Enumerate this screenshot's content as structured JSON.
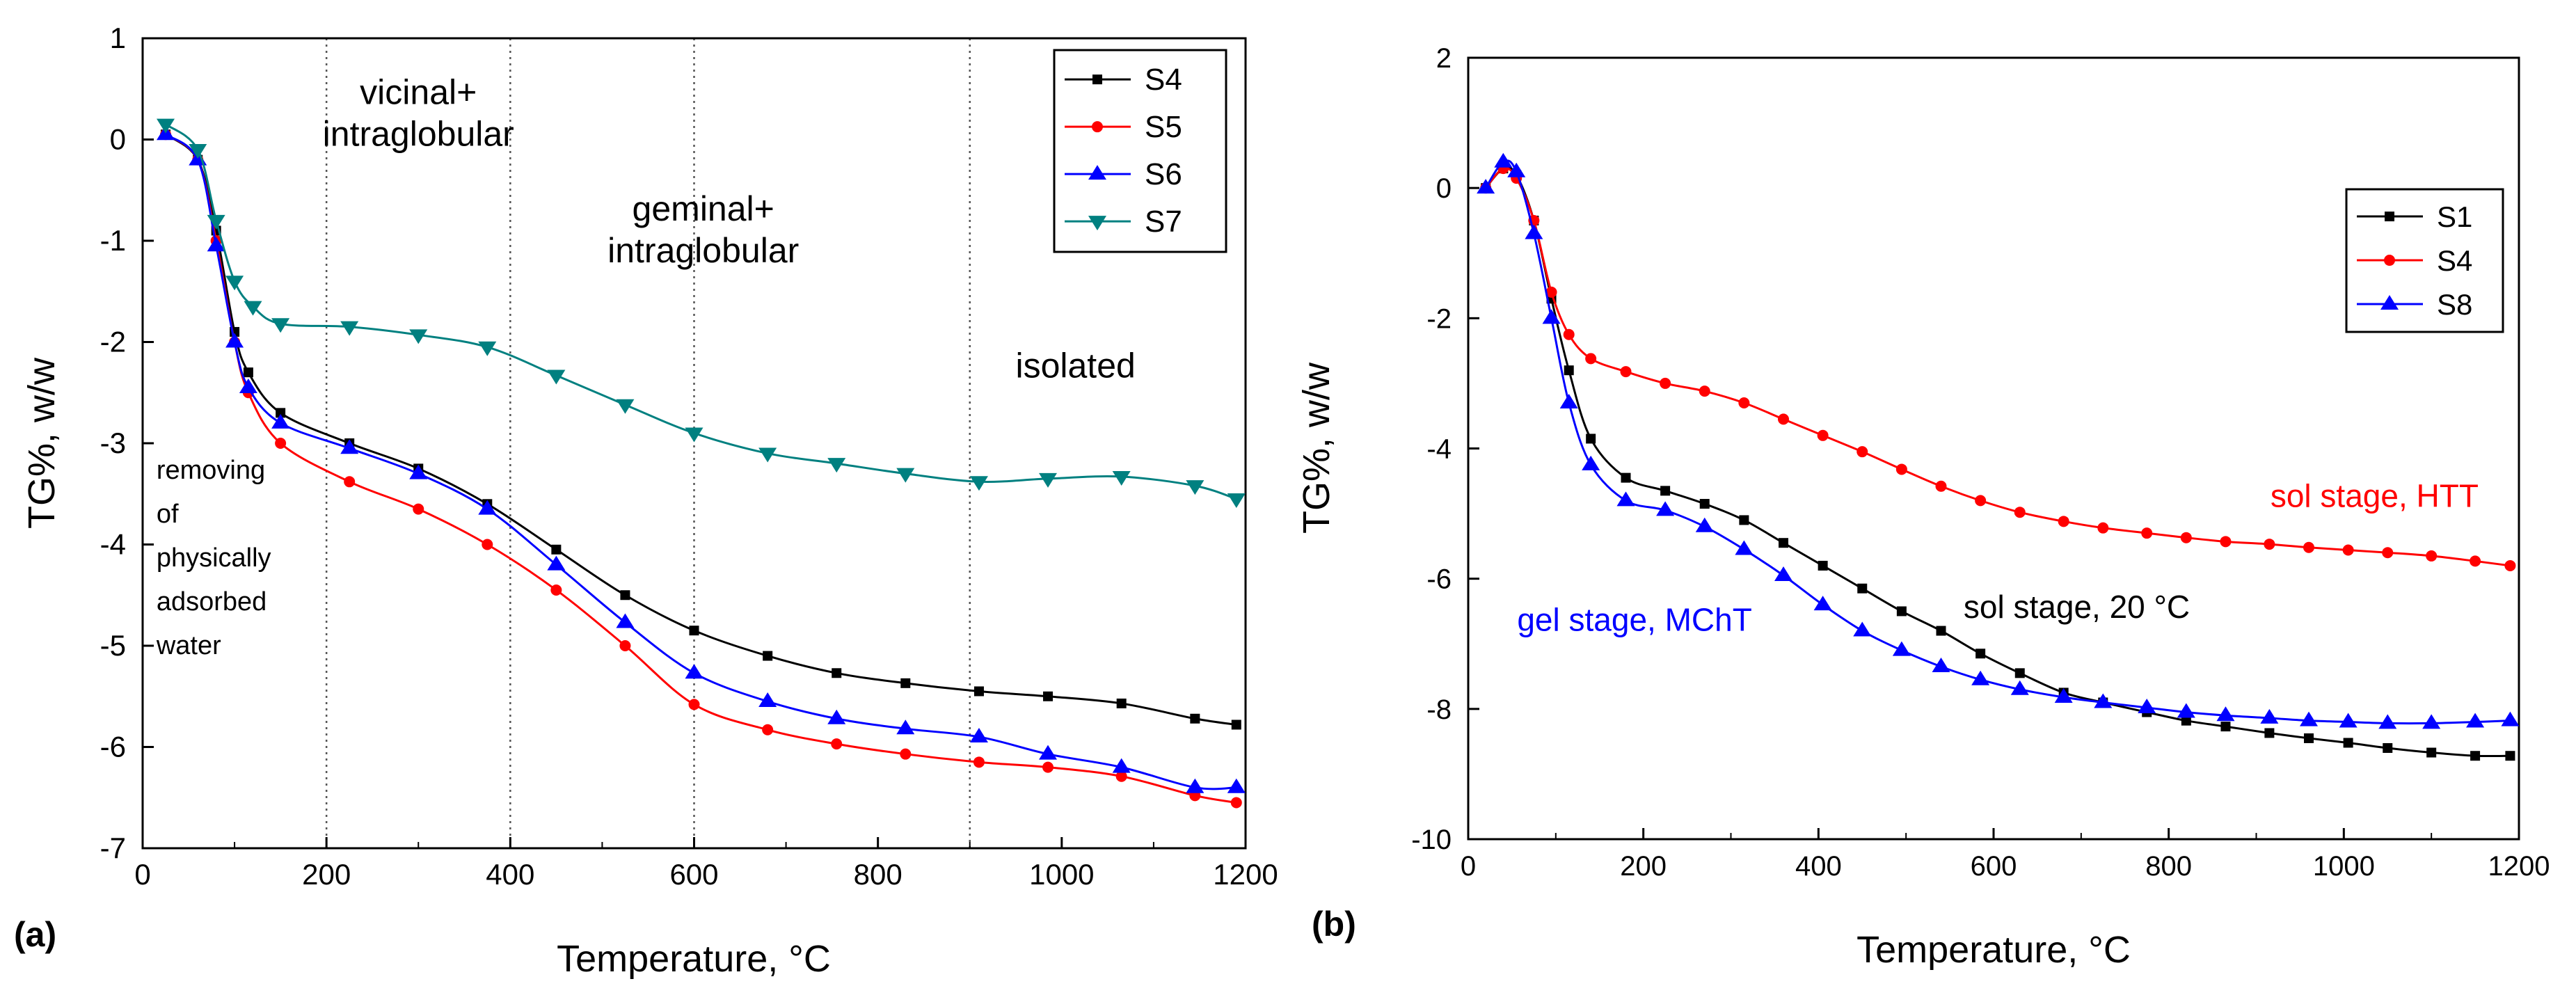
{
  "chart_data": [
    {
      "panel_label": "(a)",
      "type": "line",
      "xlabel": "Temperature, °C",
      "ylabel": "TG%, w/w",
      "xlim": [
        0,
        1200
      ],
      "ylim": [
        -7,
        1
      ],
      "xticks": [
        "0",
        "200",
        "400",
        "600",
        "800",
        "1000",
        "1200"
      ],
      "yticks": [
        "1",
        "0",
        "-1",
        "-2",
        "-3",
        "-4",
        "-5",
        "-6",
        "-7"
      ],
      "legend_position": "top-right",
      "vlines": [
        200,
        400,
        600,
        900,
        1200
      ],
      "annotations": [
        {
          "lines": [
            "vicinal+",
            "intraglobular"
          ],
          "x": 300,
          "y": 0.35
        },
        {
          "lines": [
            "geminal+",
            "intraglobular"
          ],
          "x": 610,
          "y": -0.8
        },
        {
          "lines": [
            "isolated"
          ],
          "x": 1015,
          "y": -2.35
        },
        {
          "lines": [
            "removing",
            "of",
            "physically",
            "adsorbed",
            "water"
          ],
          "x": 15,
          "y": -3.35
        }
      ],
      "series": [
        {
          "name": "S4",
          "color": "#000000",
          "marker": "square",
          "x": [
            25,
            60,
            80,
            100,
            115,
            150,
            225,
            300,
            375,
            450,
            525,
            600,
            680,
            755,
            830,
            910,
            985,
            1065,
            1145,
            1190
          ],
          "y": [
            0.05,
            -0.2,
            -0.9,
            -1.9,
            -2.3,
            -2.7,
            -3.0,
            -3.25,
            -3.6,
            -4.05,
            -4.5,
            -4.85,
            -5.1,
            -5.27,
            -5.37,
            -5.45,
            -5.5,
            -5.57,
            -5.72,
            -5.78
          ]
        },
        {
          "name": "S5",
          "color": "#ff0000",
          "marker": "circle",
          "x": [
            25,
            60,
            80,
            100,
            115,
            150,
            225,
            300,
            375,
            450,
            525,
            600,
            680,
            755,
            830,
            910,
            985,
            1065,
            1145,
            1190
          ],
          "y": [
            0.05,
            -0.2,
            -1.0,
            -2.0,
            -2.5,
            -3.0,
            -3.38,
            -3.65,
            -4.0,
            -4.45,
            -5.0,
            -5.58,
            -5.83,
            -5.97,
            -6.07,
            -6.15,
            -6.2,
            -6.29,
            -6.48,
            -6.55
          ]
        },
        {
          "name": "S6",
          "color": "#0000ff",
          "marker": "triangle-up",
          "x": [
            25,
            60,
            80,
            100,
            115,
            150,
            225,
            300,
            375,
            450,
            525,
            600,
            680,
            755,
            830,
            910,
            985,
            1065,
            1145,
            1190
          ],
          "y": [
            0.05,
            -0.2,
            -1.05,
            -2.0,
            -2.45,
            -2.8,
            -3.05,
            -3.3,
            -3.65,
            -4.2,
            -4.77,
            -5.27,
            -5.55,
            -5.72,
            -5.82,
            -5.9,
            -6.07,
            -6.2,
            -6.4,
            -6.4
          ]
        },
        {
          "name": "S7",
          "color": "#008080",
          "marker": "triangle-down",
          "x": [
            25,
            60,
            80,
            100,
            120,
            150,
            225,
            300,
            375,
            450,
            525,
            600,
            680,
            755,
            830,
            910,
            985,
            1065,
            1145,
            1190
          ],
          "y": [
            0.15,
            -0.1,
            -0.8,
            -1.4,
            -1.65,
            -1.82,
            -1.85,
            -1.93,
            -2.05,
            -2.33,
            -2.62,
            -2.9,
            -3.1,
            -3.2,
            -3.3,
            -3.38,
            -3.35,
            -3.33,
            -3.42,
            -3.55
          ]
        }
      ]
    },
    {
      "panel_label": "(b)",
      "type": "line",
      "xlabel": "Temperature, °C",
      "ylabel": "TG%, w/w",
      "xlim": [
        0,
        1200
      ],
      "ylim": [
        -10,
        2
      ],
      "xticks": [
        "0",
        "200",
        "400",
        "600",
        "800",
        "1000",
        "1200"
      ],
      "yticks": [
        "2",
        "0",
        "-2",
        "-4",
        "-6",
        "-8",
        "-10"
      ],
      "legend_position": "top-right",
      "annotations": [
        {
          "text": "sol stage, HTT",
          "color": "#ff0000",
          "x": 1035,
          "y": -4.9
        },
        {
          "text": "sol stage, 20 °C",
          "color": "#000000",
          "x": 695,
          "y": -6.6
        },
        {
          "text": "gel stage, MChT",
          "color": "#0000ff",
          "x": 190,
          "y": -6.8
        }
      ],
      "series": [
        {
          "name": "S1",
          "color": "#000000",
          "marker": "square",
          "x": [
            20,
            40,
            55,
            75,
            95,
            115,
            140,
            180,
            225,
            270,
            315,
            360,
            405,
            450,
            495,
            540,
            585,
            630,
            680,
            725,
            775,
            820,
            865,
            915,
            960,
            1005,
            1050,
            1100,
            1150,
            1190
          ],
          "y": [
            0.0,
            0.3,
            0.2,
            -0.5,
            -1.7,
            -2.8,
            -3.85,
            -4.45,
            -4.65,
            -4.85,
            -5.1,
            -5.45,
            -5.8,
            -6.15,
            -6.5,
            -6.8,
            -7.15,
            -7.45,
            -7.75,
            -7.9,
            -8.05,
            -8.18,
            -8.27,
            -8.37,
            -8.45,
            -8.52,
            -8.6,
            -8.67,
            -8.72,
            -8.72
          ]
        },
        {
          "name": "S4",
          "color": "#ff0000",
          "marker": "circle",
          "x": [
            20,
            40,
            55,
            75,
            95,
            115,
            140,
            180,
            225,
            270,
            315,
            360,
            405,
            450,
            495,
            540,
            585,
            630,
            680,
            725,
            775,
            820,
            865,
            915,
            960,
            1005,
            1050,
            1100,
            1150,
            1190
          ],
          "y": [
            0.0,
            0.3,
            0.15,
            -0.5,
            -1.6,
            -2.25,
            -2.62,
            -2.82,
            -3.0,
            -3.12,
            -3.3,
            -3.55,
            -3.8,
            -4.05,
            -4.32,
            -4.58,
            -4.8,
            -4.98,
            -5.12,
            -5.22,
            -5.3,
            -5.37,
            -5.43,
            -5.47,
            -5.52,
            -5.56,
            -5.6,
            -5.65,
            -5.73,
            -5.8
          ]
        },
        {
          "name": "S8",
          "color": "#0000ff",
          "marker": "triangle-up",
          "x": [
            20,
            40,
            55,
            75,
            95,
            115,
            140,
            180,
            225,
            270,
            315,
            360,
            405,
            450,
            495,
            540,
            585,
            630,
            680,
            725,
            775,
            820,
            865,
            915,
            960,
            1005,
            1050,
            1100,
            1150,
            1190
          ],
          "y": [
            0.0,
            0.4,
            0.25,
            -0.7,
            -2.0,
            -3.3,
            -4.25,
            -4.8,
            -4.95,
            -5.2,
            -5.55,
            -5.95,
            -6.4,
            -6.8,
            -7.1,
            -7.35,
            -7.55,
            -7.7,
            -7.82,
            -7.9,
            -7.98,
            -8.05,
            -8.1,
            -8.14,
            -8.18,
            -8.2,
            -8.22,
            -8.22,
            -8.2,
            -8.18
          ]
        }
      ]
    }
  ]
}
